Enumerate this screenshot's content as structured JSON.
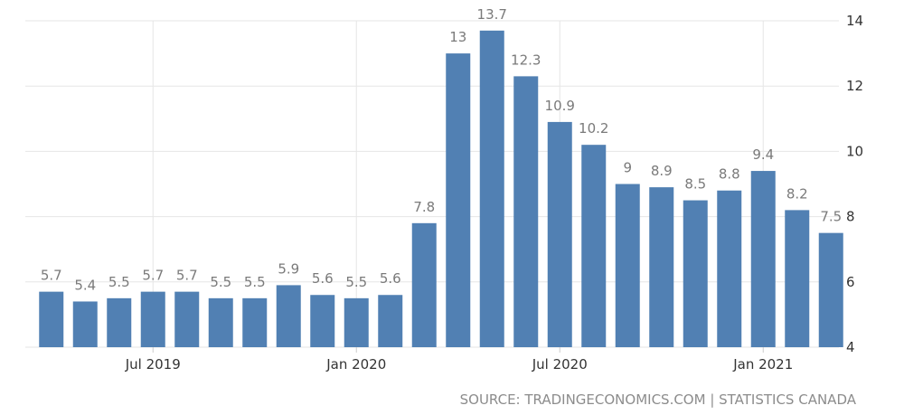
{
  "chart_data": {
    "type": "bar",
    "categories": [
      "Apr 2019",
      "May 2019",
      "Jun 2019",
      "Jul 2019",
      "Aug 2019",
      "Sep 2019",
      "Oct 2019",
      "Nov 2019",
      "Dec 2019",
      "Jan 2020",
      "Feb 2020",
      "Mar 2020",
      "Apr 2020",
      "May 2020",
      "Jun 2020",
      "Jul 2020",
      "Aug 2020",
      "Sep 2020",
      "Oct 2020",
      "Nov 2020",
      "Dec 2020",
      "Jan 2021",
      "Feb 2021",
      "Mar 2021"
    ],
    "values": [
      5.7,
      5.4,
      5.5,
      5.7,
      5.7,
      5.5,
      5.5,
      5.9,
      5.6,
      5.5,
      5.6,
      7.8,
      13,
      13.7,
      12.3,
      10.9,
      10.2,
      9,
      8.9,
      8.5,
      8.8,
      9.4,
      8.2,
      7.5
    ],
    "data_labels": [
      "5.7",
      "5.4",
      "5.5",
      "5.7",
      "5.7",
      "5.5",
      "5.5",
      "5.9",
      "5.6",
      "5.5",
      "5.6",
      "7.8",
      "13",
      "13.7",
      "12.3",
      "10.9",
      "10.2",
      "9",
      "8.9",
      "8.5",
      "8.8",
      "9.4",
      "8.2",
      "7.5"
    ],
    "ylim": [
      4,
      14
    ],
    "y_ticks": [
      "4",
      "6",
      "8",
      "10",
      "12",
      "14"
    ],
    "x_tick_labels": [
      "Jul 2019",
      "Jan 2020",
      "Jul 2020",
      "Jan 2021"
    ],
    "x_tick_categories": [
      "Jul 2019",
      "Jan 2020",
      "Jul 2020",
      "Jan 2021"
    ],
    "y_axis_position": "right",
    "grid": true,
    "bar_color": "#5180b3"
  },
  "source": "SOURCE: TRADINGECONOMICS.COM | STATISTICS CANADA"
}
